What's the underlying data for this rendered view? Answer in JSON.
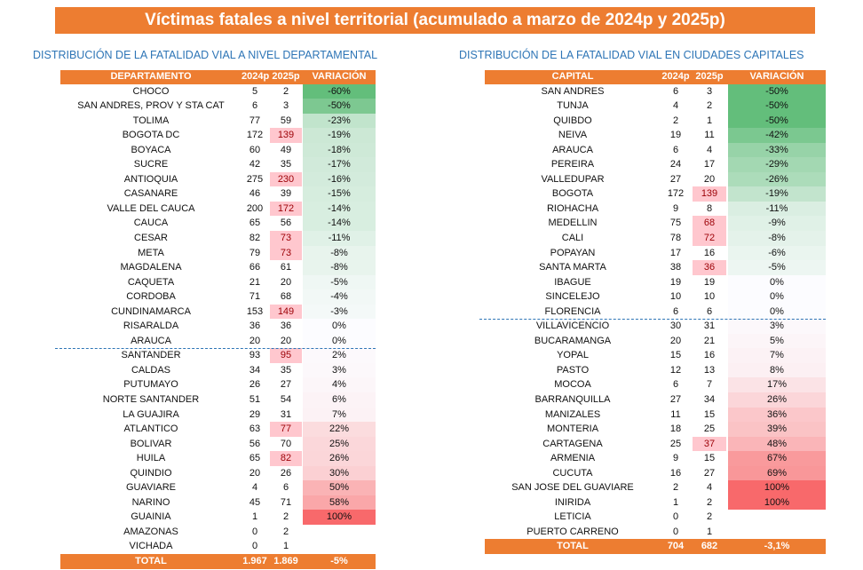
{
  "title": "Víctimas  fatales a nivel territorial  (acumulado a marzo de 2024p y 2025p)",
  "chart_data": [
    {
      "type": "table",
      "title": "DISTRIBUCIÓN  DE LA FATALIDAD  VIAL A NIVEL DEPARTAMENTAL",
      "headers": [
        "DEPARTAMENTO",
        "2024p",
        "2025p",
        "VARIACIÓN"
      ],
      "rows": [
        [
          "CHOCO",
          "5",
          "2",
          "-60%",
          false
        ],
        [
          "SAN ANDRES,  PROV Y STA CAT",
          "6",
          "3",
          "-50%",
          false
        ],
        [
          "TOLIMA",
          "77",
          "59",
          "-23%",
          false
        ],
        [
          "BOGOTA DC",
          "172",
          "139",
          "-19%",
          true
        ],
        [
          "BOYACA",
          "60",
          "49",
          "-18%",
          false
        ],
        [
          "SUCRE",
          "42",
          "35",
          "-17%",
          false
        ],
        [
          "ANTIOQUIA",
          "275",
          "230",
          "-16%",
          true
        ],
        [
          "CASANARE",
          "46",
          "39",
          "-15%",
          false
        ],
        [
          "VALLE  DEL CAUCA",
          "200",
          "172",
          "-14%",
          true
        ],
        [
          "CAUCA",
          "65",
          "56",
          "-14%",
          false
        ],
        [
          "CESAR",
          "82",
          "73",
          "-11%",
          true
        ],
        [
          "META",
          "79",
          "73",
          "-8%",
          true
        ],
        [
          "MAGDALENA",
          "66",
          "61",
          "-8%",
          false
        ],
        [
          "CAQUETA",
          "21",
          "20",
          "-5%",
          false
        ],
        [
          "CORDOBA",
          "71",
          "68",
          "-4%",
          false
        ],
        [
          "CUNDINAMARCA",
          "153",
          "149",
          "-3%",
          true
        ],
        [
          "RISARALDA",
          "36",
          "36",
          "0%",
          false
        ],
        [
          "ARAUCA",
          "20",
          "20",
          "0%",
          false
        ],
        [
          "SANTANDER",
          "93",
          "95",
          "2%",
          true
        ],
        [
          "CALDAS",
          "34",
          "35",
          "3%",
          false
        ],
        [
          "PUTUMAYO",
          "26",
          "27",
          "4%",
          false
        ],
        [
          "NORTE SANTANDER",
          "51",
          "54",
          "6%",
          false
        ],
        [
          "LA GUAJIRA",
          "29",
          "31",
          "7%",
          false
        ],
        [
          "ATLANTICO",
          "63",
          "77",
          "22%",
          true
        ],
        [
          "BOLIVAR",
          "56",
          "70",
          "25%",
          false
        ],
        [
          "HUILA",
          "65",
          "82",
          "26%",
          true
        ],
        [
          "QUINDIO",
          "20",
          "26",
          "30%",
          false
        ],
        [
          "GUAVIARE",
          "4",
          "6",
          "50%",
          false
        ],
        [
          "NARINO",
          "45",
          "71",
          "58%",
          false
        ],
        [
          "GUAINIA",
          "1",
          "2",
          "100%",
          false
        ],
        [
          "AMAZONAS",
          "0",
          "2",
          "",
          false
        ],
        [
          "VICHADA",
          "0",
          "1",
          "",
          false
        ]
      ],
      "total": [
        "TOTAL",
        "1.967",
        "1.869",
        "-5%"
      ],
      "dash_after": 18
    },
    {
      "type": "table",
      "title": "DISTRIBUCIÓN  DE LA FATALIDAD  VIAL EN CIUDADES  CAPITALES",
      "headers": [
        "CAPITAL",
        "2024p",
        "2025p",
        "VARIACIÓN"
      ],
      "rows": [
        [
          "SAN ANDRES",
          "6",
          "3",
          "-50%",
          false
        ],
        [
          "TUNJA",
          "4",
          "2",
          "-50%",
          false
        ],
        [
          "QUIBDO",
          "2",
          "1",
          "-50%",
          false
        ],
        [
          "NEIVA",
          "19",
          "11",
          "-42%",
          false
        ],
        [
          "ARAUCA",
          "6",
          "4",
          "-33%",
          false
        ],
        [
          "PEREIRA",
          "24",
          "17",
          "-29%",
          false
        ],
        [
          "VALLEDUPAR",
          "27",
          "20",
          "-26%",
          false
        ],
        [
          "BOGOTA",
          "172",
          "139",
          "-19%",
          true
        ],
        [
          "RIOHACHA",
          "9",
          "8",
          "-11%",
          false
        ],
        [
          "MEDELLIN",
          "75",
          "68",
          "-9%",
          true
        ],
        [
          "CALI",
          "78",
          "72",
          "-8%",
          true
        ],
        [
          "POPAYAN",
          "17",
          "16",
          "-6%",
          false
        ],
        [
          "SANTA  MARTA",
          "38",
          "36",
          "-5%",
          true
        ],
        [
          "IBAGUE",
          "19",
          "19",
          "0%",
          false
        ],
        [
          "SINCELEJO",
          "10",
          "10",
          "0%",
          false
        ],
        [
          "FLORENCIA",
          "6",
          "6",
          "0%",
          false
        ],
        [
          "VILLAVICENCIO",
          "30",
          "31",
          "3%",
          false
        ],
        [
          "BUCARAMANGA",
          "20",
          "21",
          "5%",
          false
        ],
        [
          "YOPAL",
          "15",
          "16",
          "7%",
          false
        ],
        [
          "PASTO",
          "12",
          "13",
          "8%",
          false
        ],
        [
          "MOCOA",
          "6",
          "7",
          "17%",
          false
        ],
        [
          "BARRANQUILLA",
          "27",
          "34",
          "26%",
          false
        ],
        [
          "MANIZALES",
          "11",
          "15",
          "36%",
          false
        ],
        [
          "MONTERIA",
          "18",
          "25",
          "39%",
          false
        ],
        [
          "CARTAGENA",
          "25",
          "37",
          "48%",
          true
        ],
        [
          "ARMENIA",
          "9",
          "15",
          "67%",
          false
        ],
        [
          "CUCUTA",
          "16",
          "27",
          "69%",
          false
        ],
        [
          "SAN JOSE DEL GUAVIARE",
          "2",
          "4",
          "100%",
          false
        ],
        [
          "INIRIDA",
          "1",
          "2",
          "100%",
          false
        ],
        [
          "LETICIA",
          "0",
          "2",
          "",
          false
        ],
        [
          "PUERTO CARRENO",
          "0",
          "1",
          "",
          false
        ]
      ],
      "total": [
        "TOTAL",
        "704",
        "682",
        "-3,1%"
      ],
      "dash_after": 16
    }
  ],
  "colors": {
    "header": "#ed7d31",
    "green": "#63be7b",
    "red": "#f8696b",
    "neutral": "#fcfcff"
  }
}
